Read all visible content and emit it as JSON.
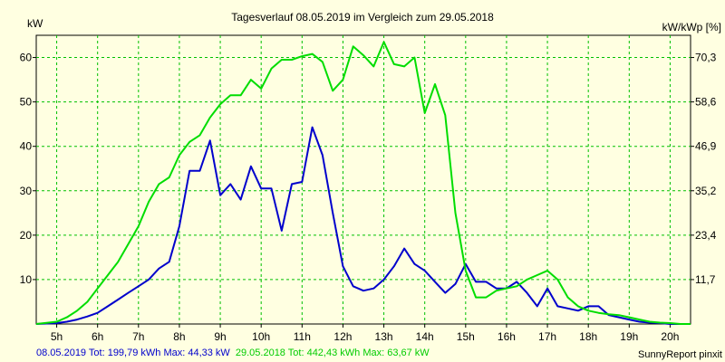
{
  "chart_data": {
    "type": "line",
    "title": "Tagesverlauf 08.05.2019 im Vergleich zum 29.05.2018",
    "ylabel_left": "kW",
    "ylabel_right": "kW/kWp [%]",
    "xlim": [
      4.5,
      20.5
    ],
    "ylim": [
      0,
      65
    ],
    "x_ticks": [
      5,
      6,
      7,
      8,
      9,
      10,
      11,
      12,
      13,
      14,
      15,
      16,
      17,
      18,
      19,
      20
    ],
    "x_tick_labels": [
      "5h",
      "6h",
      "7h",
      "8h",
      "9h",
      "10h",
      "11h",
      "12h",
      "13h",
      "14h",
      "15h",
      "16h",
      "17h",
      "18h",
      "19h",
      "20h"
    ],
    "y_ticks": [
      10,
      20,
      30,
      40,
      50,
      60
    ],
    "y_tick_labels": [
      "10",
      "20",
      "30",
      "40",
      "50",
      "60"
    ],
    "y2_ticks": [
      10,
      20,
      30,
      40,
      50,
      60
    ],
    "y2_tick_labels": [
      "11,7",
      "23,4",
      "35,2",
      "46,9",
      "58,6",
      "70,3"
    ],
    "grid": true,
    "colors": {
      "background": "#ffffe1",
      "plot_border": "#000000",
      "grid": "#00c000"
    },
    "series": [
      {
        "color": "#0000cc",
        "x": [
          4.5,
          5.0,
          5.25,
          5.5,
          5.75,
          6.0,
          6.25,
          6.5,
          6.75,
          7.0,
          7.25,
          7.5,
          7.75,
          8.0,
          8.25,
          8.5,
          8.75,
          9.0,
          9.25,
          9.5,
          9.75,
          10.0,
          10.25,
          10.5,
          10.75,
          11.0,
          11.25,
          11.5,
          11.75,
          12.0,
          12.25,
          12.5,
          12.75,
          13.0,
          13.25,
          13.5,
          13.75,
          14.0,
          14.25,
          14.5,
          14.75,
          15.0,
          15.25,
          15.5,
          15.75,
          16.0,
          16.25,
          16.5,
          16.75,
          17.0,
          17.25,
          17.5,
          17.75,
          18.0,
          18.25,
          18.5,
          18.75,
          19.0,
          19.25,
          19.5,
          19.75,
          20.0,
          20.25,
          20.5
        ],
        "y": [
          0.0,
          0.2,
          0.5,
          1.0,
          1.7,
          2.5,
          4.0,
          5.5,
          7.0,
          8.5,
          10.0,
          12.5,
          14.0,
          22.0,
          34.5,
          34.5,
          41.3,
          29.0,
          31.5,
          28.0,
          35.5,
          30.5,
          30.5,
          21.0,
          31.5,
          32.0,
          44.3,
          38.0,
          25.0,
          13.0,
          8.5,
          7.5,
          8.0,
          10.0,
          13.0,
          17.0,
          13.5,
          12.0,
          9.5,
          7.0,
          9.0,
          13.5,
          9.5,
          9.5,
          8.0,
          8.0,
          9.5,
          7.0,
          4.0,
          8.0,
          4.0,
          3.5,
          3.0,
          4.0,
          4.0,
          2.0,
          1.5,
          1.0,
          0.5,
          0.3,
          0.2,
          0.0,
          0.0,
          0.0
        ]
      },
      {
        "color": "#00dd00",
        "x": [
          4.5,
          5.0,
          5.25,
          5.5,
          5.75,
          6.0,
          6.25,
          6.5,
          6.75,
          7.0,
          7.25,
          7.5,
          7.75,
          8.0,
          8.25,
          8.5,
          8.75,
          9.0,
          9.25,
          9.5,
          9.75,
          10.0,
          10.25,
          10.5,
          10.75,
          11.0,
          11.25,
          11.5,
          11.75,
          12.0,
          12.25,
          12.5,
          12.75,
          13.0,
          13.25,
          13.5,
          13.75,
          14.0,
          14.25,
          14.5,
          14.75,
          15.0,
          15.25,
          15.5,
          15.75,
          16.0,
          16.25,
          16.5,
          16.75,
          17.0,
          17.25,
          17.5,
          17.75,
          18.0,
          18.25,
          18.5,
          18.75,
          19.0,
          19.25,
          19.5,
          19.75,
          20.0,
          20.25,
          20.5
        ],
        "y": [
          0.0,
          0.5,
          1.5,
          3.0,
          5.0,
          8.0,
          11.0,
          14.0,
          18.0,
          22.0,
          27.5,
          31.5,
          33.0,
          38.0,
          41.0,
          42.5,
          46.5,
          49.5,
          51.5,
          51.5,
          55.0,
          53.0,
          57.5,
          59.5,
          59.5,
          60.3,
          60.8,
          59.0,
          52.5,
          55.0,
          62.5,
          60.5,
          58.0,
          63.5,
          58.5,
          58.0,
          60.0,
          47.5,
          54.0,
          47.0,
          25.0,
          12.0,
          6.0,
          6.0,
          7.5,
          8.0,
          8.5,
          10.0,
          11.0,
          12.0,
          10.0,
          6.0,
          4.0,
          3.0,
          2.5,
          2.2,
          2.0,
          1.5,
          1.0,
          0.5,
          0.3,
          0.2,
          0.0,
          0.0
        ]
      }
    ],
    "footer": {
      "left_text": "08.05.2019 Tot: 199,79 kWh Max: 44,33 kW",
      "right_text": "29.05.2018 Tot: 442,43 kWh Max: 63,67 kW",
      "credit": "SunnyReport pinxit"
    }
  }
}
